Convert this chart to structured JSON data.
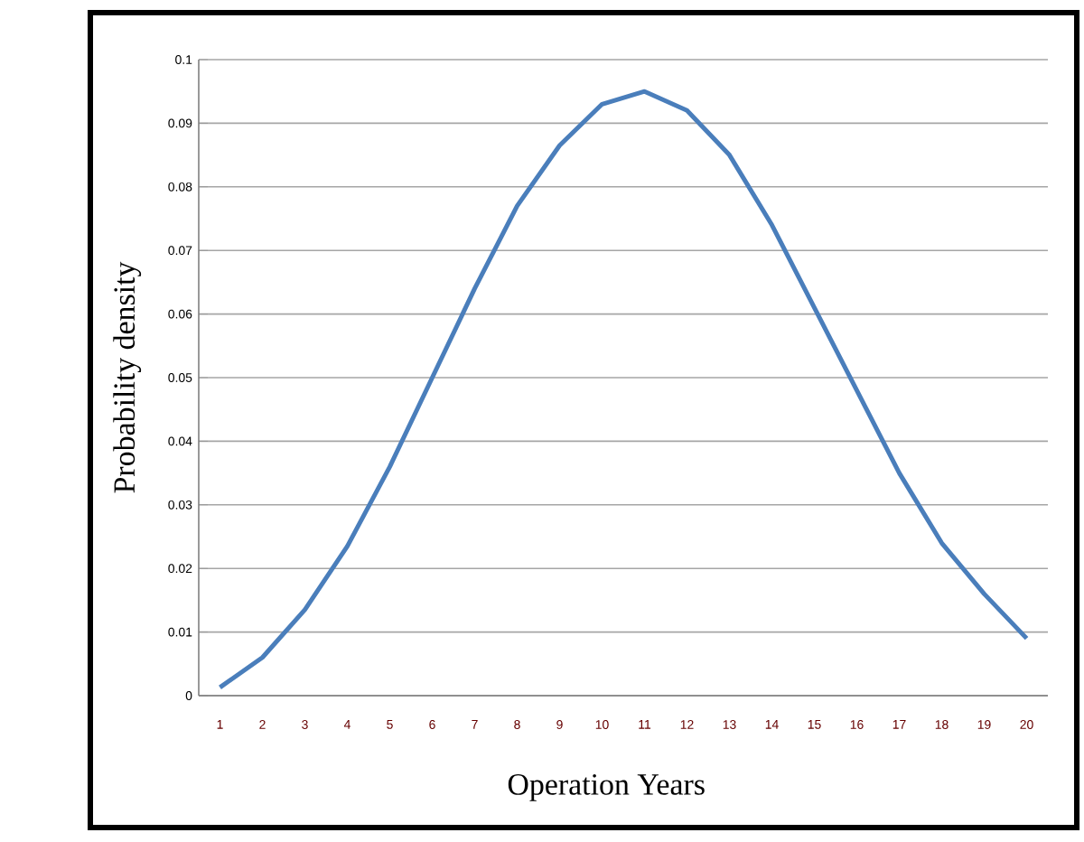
{
  "chart_data": {
    "type": "line",
    "xlabel": "Operation Years",
    "ylabel": "Probability density",
    "categories": [
      "1",
      "2",
      "3",
      "4",
      "5",
      "6",
      "7",
      "8",
      "9",
      "10",
      "11",
      "12",
      "13",
      "14",
      "15",
      "16",
      "17",
      "18",
      "19",
      "20"
    ],
    "series": [
      {
        "color": "#4a7ebb",
        "values": [
          0.0013,
          0.006,
          0.0135,
          0.0235,
          0.036,
          0.05,
          0.064,
          0.077,
          0.0865,
          0.093,
          0.095,
          0.092,
          0.085,
          0.074,
          0.061,
          0.048,
          0.035,
          0.024,
          0.016,
          0.009
        ]
      }
    ],
    "ylim": [
      0,
      0.1
    ],
    "yticks": [
      0,
      0.01,
      0.02,
      0.03,
      0.04,
      0.05,
      0.06,
      0.07,
      0.08,
      0.09,
      0.1
    ],
    "grid": "y",
    "marker": "none",
    "line_style": "solid"
  }
}
